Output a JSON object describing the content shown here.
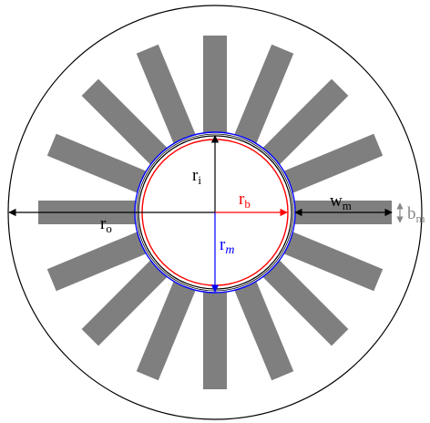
{
  "labels": {
    "r_o": "r",
    "r_o_sub": "o",
    "r_i": "r",
    "r_i_sub": "i",
    "r_b": "r",
    "r_b_sub": "b",
    "r_m": "r",
    "r_m_sub": "m",
    "w_m": "w",
    "w_m_sub": "m",
    "b_m": "b",
    "b_m_sub": "m"
  },
  "magnets": {
    "count": 16
  },
  "colors": {
    "magnet": "#7f7f7f",
    "outline": "#000000",
    "r_b": "#ff0000",
    "r_m": "#0000ff",
    "b_m": "#888888"
  }
}
